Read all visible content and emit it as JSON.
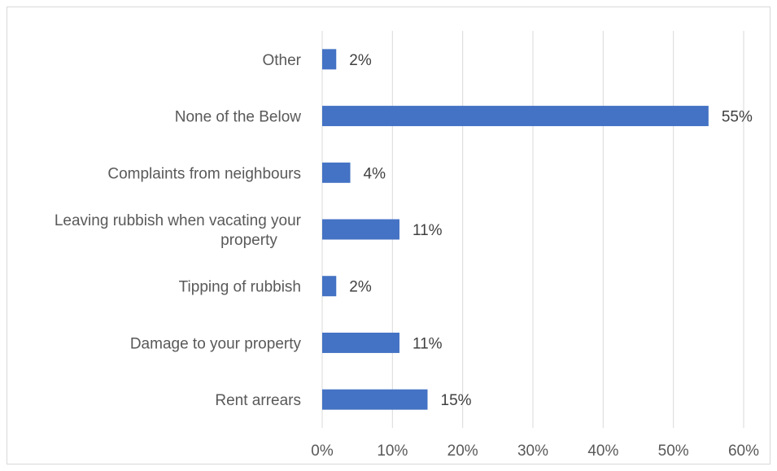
{
  "chart_data": {
    "type": "bar",
    "orientation": "horizontal",
    "categories": [
      "Other",
      "None of the Below",
      "Complaints from neighbours",
      "Leaving rubbish when vacating your property",
      "Tipping of rubbish",
      "Damage to your property",
      "Rent arrears"
    ],
    "category_label_lines": [
      [
        "Other"
      ],
      [
        "None of the Below"
      ],
      [
        "Complaints from neighbours"
      ],
      [
        "Leaving rubbish when vacating your",
        "property"
      ],
      [
        "Tipping of rubbish"
      ],
      [
        "Damage to your property"
      ],
      [
        "Rent arrears"
      ]
    ],
    "values": [
      2,
      55,
      4,
      11,
      2,
      11,
      15
    ],
    "data_labels": [
      "2%",
      "55%",
      "4%",
      "11%",
      "2%",
      "11%",
      "15%"
    ],
    "xlim": [
      0,
      60
    ],
    "xticks": [
      0,
      10,
      20,
      30,
      40,
      50,
      60
    ],
    "xtick_labels": [
      "0%",
      "10%",
      "20%",
      "30%",
      "40%",
      "50%",
      "60%"
    ],
    "title": "",
    "xlabel": "",
    "ylabel": "",
    "grid": "vertical",
    "legend": "none",
    "colors": {
      "bar": "#4472c4",
      "grid": "#d9d9d9",
      "text": "#595959",
      "frame": "#d9d9d9"
    }
  }
}
